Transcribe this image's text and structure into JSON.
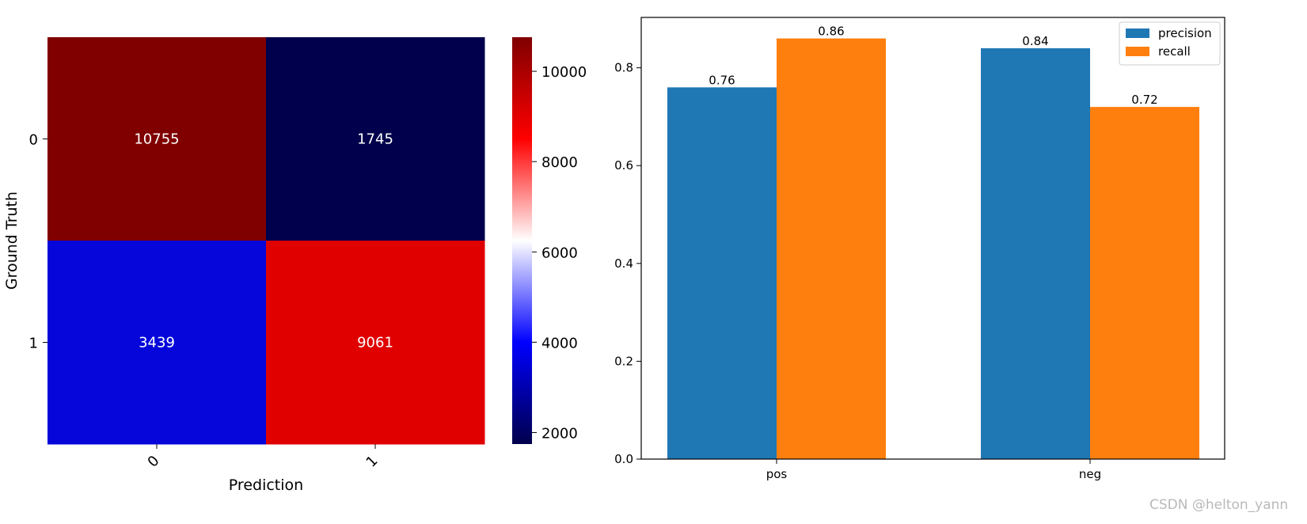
{
  "chart_data": [
    {
      "type": "heatmap",
      "xlabel": "Prediction",
      "ylabel": "Ground Truth",
      "x_tick_labels": [
        "0",
        "1"
      ],
      "y_tick_labels": [
        "0",
        "1"
      ],
      "matrix": [
        [
          10755,
          1745
        ],
        [
          3439,
          9061
        ]
      ],
      "cell_colors": [
        [
          "#800000",
          "#00004c"
        ],
        [
          "#0606da",
          "#e00000"
        ]
      ],
      "colorbar": {
        "range": [
          1745,
          10755
        ],
        "ticks": [
          2000,
          4000,
          6000,
          8000,
          10000
        ],
        "tick_labels": [
          "2000",
          "4000",
          "6000",
          "8000",
          "10000"
        ],
        "colormap": "seismic"
      }
    },
    {
      "type": "bar",
      "categories": [
        "pos",
        "neg"
      ],
      "series": [
        {
          "name": "precision",
          "values": [
            0.76,
            0.84
          ],
          "color": "#1f77b4"
        },
        {
          "name": "recall",
          "values": [
            0.86,
            0.72
          ],
          "color": "#ff7f0e"
        }
      ],
      "data_labels": [
        [
          "0.76",
          "0.84"
        ],
        [
          "0.86",
          "0.72"
        ]
      ],
      "y_ticks": [
        0.0,
        0.2,
        0.4,
        0.6,
        0.8
      ],
      "y_tick_labels": [
        "0.0",
        "0.2",
        "0.4",
        "0.6",
        "0.8"
      ],
      "ylim": [
        0,
        0.903
      ],
      "legend_position": "upper right"
    }
  ],
  "watermark": "CSDN @helton_yann"
}
